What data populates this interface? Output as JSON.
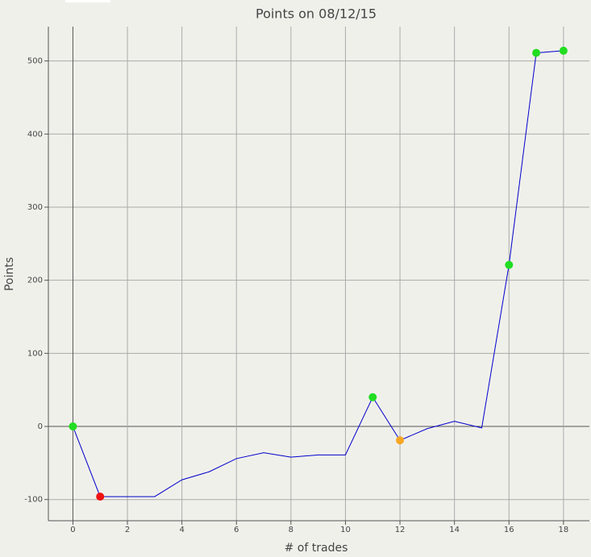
{
  "chart_data": {
    "type": "line",
    "title": "Points on 08/12/15",
    "x_label": "# of trades",
    "y_label": "Points",
    "x": [
      0,
      1,
      2,
      3,
      4,
      5,
      6,
      7,
      8,
      9,
      10,
      11,
      12,
      13,
      14,
      15,
      16,
      17,
      18
    ],
    "series": [
      {
        "color": "#0000cc",
        "values": [
          0,
          -96,
          -96,
          -96,
          -73,
          -62,
          -44,
          -36,
          -42,
          -39,
          -39,
          40,
          -19,
          -3,
          7,
          -2,
          221,
          511,
          514
        ],
        "marker_colors": [
          "#22dd22",
          "#ee1111",
          null,
          null,
          null,
          null,
          null,
          null,
          null,
          null,
          null,
          "#22dd22",
          "#f5a623",
          null,
          null,
          null,
          "#22dd22",
          "#22dd22",
          "#22dd22"
        ]
      }
    ],
    "xlim": [
      -0.9,
      18.95
    ],
    "ylim": [
      -129,
      547
    ],
    "xticks": [
      0,
      2,
      4,
      6,
      8,
      10,
      12,
      14,
      16,
      18
    ],
    "yticks": [
      -100,
      0,
      100,
      200,
      300,
      400,
      500
    ],
    "grid": true
  }
}
